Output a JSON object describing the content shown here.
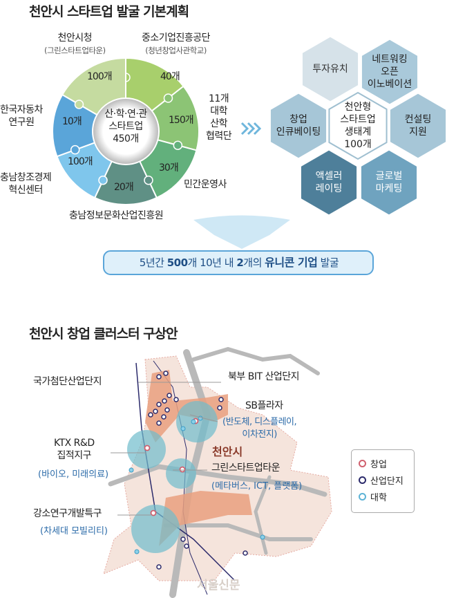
{
  "plan": {
    "title": "천안시 스타트업 발굴 기본계획",
    "center": {
      "line1": "산·학·연·관",
      "line2": "스타트업",
      "line3": "450개"
    },
    "segments": [
      {
        "org": "중소기업진흥공단",
        "sub": "(청년창업사관학교)",
        "count": "40개",
        "color": "#a8cf6c"
      },
      {
        "org_lines": [
          "11개",
          "대학",
          "산학",
          "협력단"
        ],
        "count": "150개",
        "color": "#8cc475"
      },
      {
        "org": "민간운영사",
        "count": "30개",
        "color": "#62b07c"
      },
      {
        "org": "충남정보문화산업진흥원",
        "count": "20개",
        "color": "#5f9085"
      },
      {
        "org_lines": [
          "충남창조경제",
          "혁신센터"
        ],
        "count": "100개",
        "color": "#7fc6ec"
      },
      {
        "org_lines": [
          "한국자동차",
          "연구원"
        ],
        "count": "10개",
        "color": "#5aa5d9"
      },
      {
        "org": "천안시청",
        "sub": "(그린스타트업타운)",
        "count": "100개",
        "color": "#c5dba0"
      }
    ],
    "hexagons": [
      {
        "lines": [
          "투자유치"
        ],
        "color": "#d6e2e9",
        "text": "#333"
      },
      {
        "lines": [
          "네트워킹",
          "오픈",
          "이노베이션"
        ],
        "color": "#a9c9da",
        "text": "#222"
      },
      {
        "lines": [
          "창업",
          "인큐베이팅"
        ],
        "color": "#a6c6d7",
        "text": "#222"
      },
      {
        "lines": [
          "천안형",
          "스타트업",
          "생태계",
          "100개"
        ],
        "color": "#ffffff",
        "text": "#222"
      },
      {
        "lines": [
          "컨설팅",
          "지원"
        ],
        "color": "#a6c6d7",
        "text": "#222"
      },
      {
        "lines": [
          "액셀러",
          "레이팅"
        ],
        "color": "#4e7f9a",
        "text": "#fff"
      },
      {
        "lines": [
          "글로벌",
          "마케팅"
        ],
        "color": "#6fa3bf",
        "text": "#fff"
      }
    ],
    "banner": {
      "p1": "5년간 ",
      "p2": "500",
      "p3": "개 10년 내 ",
      "p4": "2",
      "p5": "개의 ",
      "p6": "유니콘 기업",
      "p7": " 발굴"
    }
  },
  "map": {
    "title": "천안시 창업 클러스터 구상안",
    "city": "천안시",
    "labels": {
      "national": "국가첨단산업단지",
      "north": "북부 BIT 산업단지",
      "sb": "SB플라자",
      "sb_sub1": "(반도체, 디스플레이,",
      "sb_sub2": "이차전지)",
      "ktx1": "KTX R&D",
      "ktx2": "집적지구",
      "ktx_sub": "(바이오, 미래의료)",
      "green": "그린스타트업타운",
      "green_sub": "(메타버스, ICT, 플랫폼)",
      "gangso": "강소연구개발특구",
      "gangso_sub": "(차세대 모빌리티)"
    },
    "legend": [
      {
        "label": "창업",
        "icon": "pin-icon",
        "color": "#d0606e"
      },
      {
        "label": "산업단지",
        "icon": "pin-icon",
        "color": "#2b2a6b"
      },
      {
        "label": "대학",
        "icon": "dot-icon",
        "color": "#5db3d6"
      }
    ],
    "watermark": "서울신문"
  }
}
